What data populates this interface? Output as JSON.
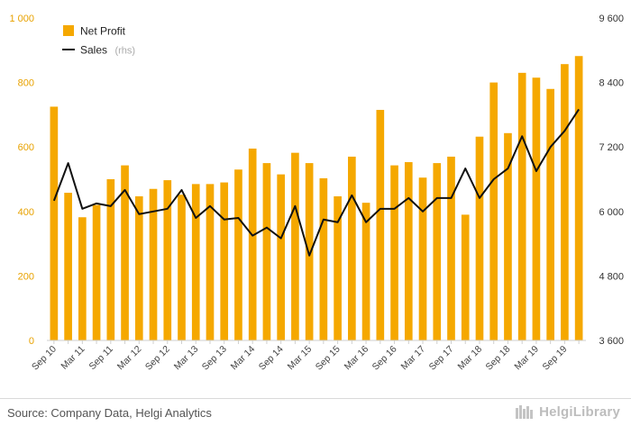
{
  "chart_data": {
    "type": "bar+line",
    "categories": [
      "Sep 10",
      "Dec 10",
      "Mar 11",
      "Jun 11",
      "Sep 11",
      "Dec 11",
      "Mar 12",
      "Jun 12",
      "Sep 12",
      "Dec 12",
      "Mar 13",
      "Jun 13",
      "Sep 13",
      "Dec 13",
      "Mar 14",
      "Jun 14",
      "Sep 14",
      "Dec 14",
      "Mar 15",
      "Jun 15",
      "Sep 15",
      "Dec 15",
      "Mar 16",
      "Jun 16",
      "Sep 16",
      "Dec 16",
      "Mar 17",
      "Jun 17",
      "Sep 17",
      "Dec 17",
      "Mar 18",
      "Jun 18",
      "Sep 18",
      "Dec 18",
      "Mar 19",
      "Jun 19",
      "Sep 19",
      "Dec 19"
    ],
    "x_tick_labels": [
      "Sep 10",
      "Mar 11",
      "Sep 11",
      "Mar 12",
      "Sep 12",
      "Mar 13",
      "Sep 13",
      "Mar 14",
      "Sep 14",
      "Mar 15",
      "Sep 15",
      "Mar 16",
      "Sep 16",
      "Mar 17",
      "Sep 17",
      "Mar 18",
      "Sep 18",
      "Mar 19",
      "Sep 19"
    ],
    "series": [
      {
        "name": "Net Profit",
        "type": "bar",
        "axis": "left",
        "color": "#f5a800",
        "values": [
          725,
          458,
          382,
          420,
          500,
          543,
          447,
          470,
          497,
          452,
          485,
          485,
          490,
          530,
          595,
          550,
          515,
          582,
          550,
          503,
          447,
          570,
          427,
          715,
          543,
          553,
          505,
          550,
          570,
          390,
          632,
          800,
          643,
          830,
          815,
          780,
          857,
          882
        ]
      },
      {
        "name": "Sales",
        "legend_note": "(rhs)",
        "type": "line",
        "axis": "right",
        "color": "#111111",
        "values": [
          6200,
          6900,
          6050,
          6150,
          6100,
          6400,
          5950,
          6000,
          6050,
          6400,
          5880,
          6100,
          5850,
          5880,
          5550,
          5700,
          5500,
          6100,
          5180,
          5850,
          5800,
          6300,
          5800,
          6050,
          6050,
          6250,
          6000,
          6250,
          6250,
          6800,
          6250,
          6600,
          6800,
          7400,
          6750,
          7200,
          7500,
          7900
        ]
      }
    ],
    "y_left": {
      "min": 0,
      "max": 1000,
      "ticks": [
        0,
        200,
        400,
        600,
        800,
        1000
      ],
      "tick_labels": [
        "0",
        "200",
        "400",
        "600",
        "800",
        "1 000"
      ]
    },
    "y_right": {
      "min": 3600,
      "max": 9600,
      "ticks": [
        3600,
        4800,
        6000,
        7200,
        8400,
        9600
      ],
      "tick_labels": [
        "3 600",
        "4 800",
        "6 000",
        "7 200",
        "8 400",
        "9 600"
      ]
    },
    "legend": {
      "position": "top-left"
    },
    "grid": false
  },
  "footer": {
    "source": "Source: Company Data, Helgi Analytics",
    "brand": "HelgiLibrary"
  }
}
